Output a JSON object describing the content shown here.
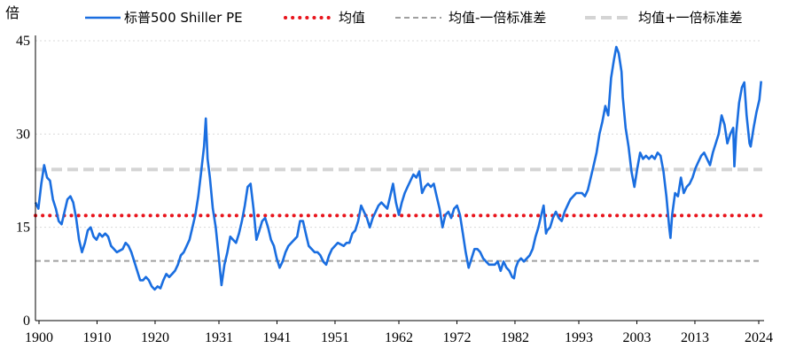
{
  "chart_data": {
    "type": "line",
    "ylabel": "倍",
    "ylim": [
      0,
      45
    ],
    "y_ticks": [
      "0",
      "15",
      "30",
      "45"
    ],
    "xlim": [
      1900,
      2024
    ],
    "x_ticks": [
      "1900",
      "1910",
      "1920",
      "1931",
      "1941",
      "1951",
      "1962",
      "1972",
      "1982",
      "1993",
      "2003",
      "2013",
      "2024"
    ],
    "grid": "horizontal dotted",
    "legend_position": "top",
    "reference_lines": [
      {
        "name": "均值",
        "value": 16.9,
        "color": "#e8141c",
        "style": "dotted"
      },
      {
        "name": "均值-一倍标准差",
        "value": 9.6,
        "color": "#a0a0a0",
        "style": "dashed"
      },
      {
        "name": "均值+一倍标准差",
        "value": 24.3,
        "color": "#d4d4d4",
        "style": "dashed"
      }
    ],
    "series": [
      {
        "name": "标普500 Shiller PE",
        "color": "#1a6ee0",
        "points": [
          [
            1900.0,
            19.0
          ],
          [
            1900.5,
            18.0
          ],
          [
            1901.0,
            22.0
          ],
          [
            1901.5,
            25.0
          ],
          [
            1902.0,
            23.0
          ],
          [
            1902.5,
            22.5
          ],
          [
            1903.0,
            19.5
          ],
          [
            1903.5,
            18.0
          ],
          [
            1904.0,
            16.0
          ],
          [
            1904.5,
            15.5
          ],
          [
            1905.0,
            17.5
          ],
          [
            1905.5,
            19.5
          ],
          [
            1906.0,
            20.0
          ],
          [
            1906.5,
            19.0
          ],
          [
            1907.0,
            16.5
          ],
          [
            1907.5,
            13.0
          ],
          [
            1908.0,
            11.0
          ],
          [
            1908.5,
            12.5
          ],
          [
            1909.0,
            14.5
          ],
          [
            1909.5,
            15.0
          ],
          [
            1910.0,
            13.5
          ],
          [
            1910.5,
            13.0
          ],
          [
            1911.0,
            14.0
          ],
          [
            1911.5,
            13.5
          ],
          [
            1912.0,
            14.0
          ],
          [
            1912.5,
            13.5
          ],
          [
            1913.0,
            12.0
          ],
          [
            1913.5,
            11.5
          ],
          [
            1914.0,
            11.0
          ],
          [
            1915.0,
            11.5
          ],
          [
            1915.5,
            12.5
          ],
          [
            1916.0,
            12.0
          ],
          [
            1916.5,
            11.0
          ],
          [
            1917.0,
            9.5
          ],
          [
            1917.5,
            8.0
          ],
          [
            1918.0,
            6.5
          ],
          [
            1918.5,
            6.5
          ],
          [
            1919.0,
            7.0
          ],
          [
            1919.5,
            6.5
          ],
          [
            1920.0,
            5.5
          ],
          [
            1920.5,
            5.0
          ],
          [
            1921.0,
            5.5
          ],
          [
            1921.5,
            5.2
          ],
          [
            1922.0,
            6.5
          ],
          [
            1922.5,
            7.5
          ],
          [
            1923.0,
            7.0
          ],
          [
            1923.5,
            7.5
          ],
          [
            1924.0,
            8.0
          ],
          [
            1924.5,
            9.0
          ],
          [
            1925.0,
            10.5
          ],
          [
            1925.5,
            11.0
          ],
          [
            1926.0,
            12.0
          ],
          [
            1926.5,
            13.0
          ],
          [
            1927.0,
            15.0
          ],
          [
            1927.5,
            17.0
          ],
          [
            1928.0,
            20.0
          ],
          [
            1928.5,
            24.0
          ],
          [
            1929.0,
            28.0
          ],
          [
            1929.3,
            32.5
          ],
          [
            1929.6,
            26.0
          ],
          [
            1930.0,
            23.0
          ],
          [
            1930.5,
            18.0
          ],
          [
            1931.0,
            15.0
          ],
          [
            1931.5,
            10.5
          ],
          [
            1932.0,
            5.7
          ],
          [
            1932.5,
            9.0
          ],
          [
            1933.0,
            11.0
          ],
          [
            1933.5,
            13.5
          ],
          [
            1934.0,
            13.0
          ],
          [
            1934.5,
            12.5
          ],
          [
            1935.0,
            14.0
          ],
          [
            1935.5,
            16.0
          ],
          [
            1936.0,
            18.5
          ],
          [
            1936.5,
            21.5
          ],
          [
            1937.0,
            22.0
          ],
          [
            1937.5,
            18.0
          ],
          [
            1938.0,
            13.0
          ],
          [
            1938.5,
            14.5
          ],
          [
            1939.0,
            16.0
          ],
          [
            1939.5,
            16.5
          ],
          [
            1940.0,
            15.0
          ],
          [
            1940.5,
            13.0
          ],
          [
            1941.0,
            12.0
          ],
          [
            1941.5,
            10.0
          ],
          [
            1942.0,
            8.5
          ],
          [
            1942.5,
            9.5
          ],
          [
            1943.0,
            11.0
          ],
          [
            1943.5,
            12.0
          ],
          [
            1944.0,
            12.5
          ],
          [
            1945.0,
            13.5
          ],
          [
            1945.5,
            16.0
          ],
          [
            1946.0,
            16.0
          ],
          [
            1946.5,
            14.0
          ],
          [
            1947.0,
            12.0
          ],
          [
            1947.5,
            11.5
          ],
          [
            1948.0,
            11.0
          ],
          [
            1948.5,
            11.0
          ],
          [
            1949.0,
            10.5
          ],
          [
            1949.5,
            9.5
          ],
          [
            1950.0,
            9.0
          ],
          [
            1950.5,
            10.5
          ],
          [
            1951.0,
            11.5
          ],
          [
            1951.5,
            12.0
          ],
          [
            1952.0,
            12.5
          ],
          [
            1953.0,
            12.0
          ],
          [
            1953.5,
            12.5
          ],
          [
            1954.0,
            12.5
          ],
          [
            1954.5,
            14.0
          ],
          [
            1955.0,
            14.5
          ],
          [
            1955.5,
            16.0
          ],
          [
            1956.0,
            18.5
          ],
          [
            1956.5,
            17.5
          ],
          [
            1957.0,
            16.5
          ],
          [
            1957.5,
            15.0
          ],
          [
            1958.0,
            16.5
          ],
          [
            1958.5,
            17.5
          ],
          [
            1959.0,
            18.5
          ],
          [
            1959.5,
            19.0
          ],
          [
            1960.0,
            18.5
          ],
          [
            1960.5,
            18.0
          ],
          [
            1961.0,
            20.0
          ],
          [
            1961.5,
            22.0
          ],
          [
            1962.0,
            19.0
          ],
          [
            1962.5,
            17.0
          ],
          [
            1963.0,
            19.0
          ],
          [
            1963.5,
            20.5
          ],
          [
            1964.0,
            21.5
          ],
          [
            1964.5,
            22.5
          ],
          [
            1965.0,
            23.5
          ],
          [
            1965.5,
            23.0
          ],
          [
            1966.0,
            24.0
          ],
          [
            1966.5,
            20.5
          ],
          [
            1967.0,
            21.5
          ],
          [
            1967.5,
            22.0
          ],
          [
            1968.0,
            21.5
          ],
          [
            1968.5,
            22.0
          ],
          [
            1969.0,
            20.0
          ],
          [
            1969.5,
            18.0
          ],
          [
            1970.0,
            15.0
          ],
          [
            1970.5,
            17.0
          ],
          [
            1971.0,
            17.5
          ],
          [
            1971.5,
            16.5
          ],
          [
            1972.0,
            18.0
          ],
          [
            1972.5,
            18.5
          ],
          [
            1973.0,
            17.0
          ],
          [
            1973.5,
            14.0
          ],
          [
            1974.0,
            11.0
          ],
          [
            1974.5,
            8.5
          ],
          [
            1975.0,
            10.0
          ],
          [
            1975.5,
            11.5
          ],
          [
            1976.0,
            11.5
          ],
          [
            1976.5,
            11.0
          ],
          [
            1977.0,
            10.0
          ],
          [
            1977.5,
            9.5
          ],
          [
            1978.0,
            9.0
          ],
          [
            1979.0,
            9.0
          ],
          [
            1979.5,
            9.5
          ],
          [
            1980.0,
            8.0
          ],
          [
            1980.5,
            9.5
          ],
          [
            1981.0,
            8.5
          ],
          [
            1981.5,
            8.0
          ],
          [
            1982.0,
            7.0
          ],
          [
            1982.3,
            6.8
          ],
          [
            1982.6,
            8.5
          ],
          [
            1983.0,
            9.5
          ],
          [
            1983.5,
            10.0
          ],
          [
            1984.0,
            9.5
          ],
          [
            1984.5,
            10.0
          ],
          [
            1985.0,
            10.5
          ],
          [
            1985.5,
            11.5
          ],
          [
            1986.0,
            13.5
          ],
          [
            1986.5,
            15.0
          ],
          [
            1987.0,
            17.0
          ],
          [
            1987.4,
            18.5
          ],
          [
            1987.8,
            14.0
          ],
          [
            1988.0,
            14.5
          ],
          [
            1988.5,
            15.0
          ],
          [
            1989.0,
            16.5
          ],
          [
            1989.5,
            17.5
          ],
          [
            1990.0,
            16.5
          ],
          [
            1990.5,
            16.0
          ],
          [
            1991.0,
            17.5
          ],
          [
            1991.5,
            18.5
          ],
          [
            1992.0,
            19.5
          ],
          [
            1993.0,
            20.5
          ],
          [
            1994.0,
            20.5
          ],
          [
            1994.5,
            20.0
          ],
          [
            1995.0,
            21.0
          ],
          [
            1995.5,
            23.0
          ],
          [
            1996.0,
            25.0
          ],
          [
            1996.5,
            27.0
          ],
          [
            1997.0,
            30.0
          ],
          [
            1997.5,
            32.0
          ],
          [
            1998.0,
            34.5
          ],
          [
            1998.5,
            33.0
          ],
          [
            1999.0,
            39.0
          ],
          [
            1999.5,
            42.0
          ],
          [
            1999.9,
            44.0
          ],
          [
            2000.3,
            43.0
          ],
          [
            2000.8,
            40.0
          ],
          [
            2001.0,
            36.0
          ],
          [
            2001.5,
            31.0
          ],
          [
            2002.0,
            28.0
          ],
          [
            2002.5,
            24.0
          ],
          [
            2003.0,
            21.5
          ],
          [
            2003.5,
            24.5
          ],
          [
            2004.0,
            27.0
          ],
          [
            2004.5,
            26.0
          ],
          [
            2005.0,
            26.5
          ],
          [
            2005.5,
            26.0
          ],
          [
            2006.0,
            26.5
          ],
          [
            2006.5,
            26.0
          ],
          [
            2007.0,
            27.0
          ],
          [
            2007.5,
            26.5
          ],
          [
            2008.0,
            24.0
          ],
          [
            2008.5,
            20.0
          ],
          [
            2009.0,
            15.0
          ],
          [
            2009.2,
            13.3
          ],
          [
            2009.5,
            17.0
          ],
          [
            2010.0,
            20.5
          ],
          [
            2010.5,
            20.0
          ],
          [
            2011.0,
            23.0
          ],
          [
            2011.5,
            20.5
          ],
          [
            2012.0,
            21.5
          ],
          [
            2012.5,
            22.0
          ],
          [
            2013.0,
            23.0
          ],
          [
            2013.5,
            24.5
          ],
          [
            2014.0,
            25.5
          ],
          [
            2014.5,
            26.5
          ],
          [
            2015.0,
            27.0
          ],
          [
            2015.5,
            26.0
          ],
          [
            2016.0,
            25.0
          ],
          [
            2016.5,
            27.0
          ],
          [
            2017.0,
            28.5
          ],
          [
            2017.5,
            30.0
          ],
          [
            2018.0,
            33.0
          ],
          [
            2018.5,
            31.5
          ],
          [
            2019.0,
            28.5
          ],
          [
            2019.5,
            30.0
          ],
          [
            2020.0,
            31.0
          ],
          [
            2020.2,
            24.8
          ],
          [
            2020.5,
            30.0
          ],
          [
            2021.0,
            35.0
          ],
          [
            2021.5,
            37.5
          ],
          [
            2021.9,
            38.3
          ],
          [
            2022.3,
            33.0
          ],
          [
            2022.8,
            28.5
          ],
          [
            2023.0,
            28.0
          ],
          [
            2023.5,
            31.0
          ],
          [
            2024.0,
            33.5
          ],
          [
            2024.5,
            35.5
          ],
          [
            2024.8,
            38.5
          ]
        ]
      }
    ]
  }
}
